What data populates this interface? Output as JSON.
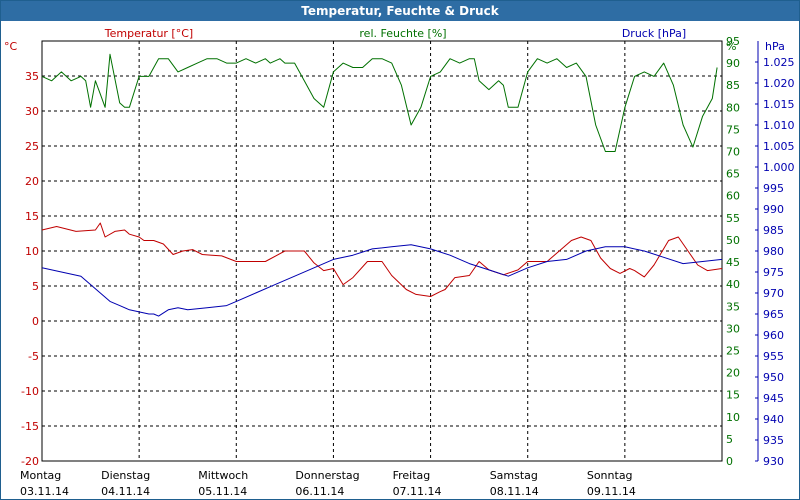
{
  "window": {
    "title": "Temperatur, Feuchte & Druck"
  },
  "colors": {
    "temperature": "#c00000",
    "humidity": "#007000",
    "pressure": "#0000b0",
    "titlebar": "#2e6da4"
  },
  "chart_data": {
    "type": "line",
    "title": "Temperatur, Feuchte & Druck",
    "legend": {
      "temperature": "Temperatur [°C]",
      "humidity": "rel. Feuchte [%]",
      "pressure": "Druck [hPa]"
    },
    "axes": {
      "temperature": {
        "unit": "°C",
        "range": [
          -20,
          40
        ],
        "ticks": [
          -20,
          -15,
          -10,
          -5,
          0,
          5,
          10,
          15,
          20,
          25,
          30,
          35
        ]
      },
      "humidity": {
        "unit": "%",
        "range": [
          0,
          95
        ],
        "ticks": [
          0,
          5,
          10,
          15,
          20,
          25,
          30,
          35,
          40,
          45,
          50,
          55,
          60,
          65,
          70,
          75,
          80,
          85,
          90,
          95
        ]
      },
      "pressure": {
        "unit": "hPa",
        "range": [
          930,
          1030
        ],
        "ticks": [
          "930",
          "935",
          "940",
          "945",
          "950",
          "955",
          "960",
          "965",
          "970",
          "975",
          "980",
          "985",
          "990",
          "995",
          "1.000",
          "1.005",
          "1.010",
          "1.015",
          "1.020",
          "1.025"
        ]
      }
    },
    "x_range": [
      0,
      7
    ],
    "days": [
      {
        "name": "Montag",
        "date": "03.11.14"
      },
      {
        "name": "Dienstag",
        "date": "04.11.14"
      },
      {
        "name": "Mittwoch",
        "date": "05.11.14"
      },
      {
        "name": "Donnerstag",
        "date": "06.11.14"
      },
      {
        "name": "Freitag",
        "date": "07.11.14"
      },
      {
        "name": "Samstag",
        "date": "08.11.14"
      },
      {
        "name": "Sonntag",
        "date": "09.11.14"
      }
    ],
    "grid": true,
    "series": [
      {
        "name": "Temperatur [°C]",
        "axis": "temperature",
        "x": [
          0,
          0.15,
          0.35,
          0.55,
          0.6,
          0.65,
          0.75,
          0.85,
          0.9,
          1.0,
          1.05,
          1.15,
          1.25,
          1.35,
          1.45,
          1.55,
          1.65,
          1.75,
          1.85,
          2.0,
          2.15,
          2.3,
          2.5,
          2.7,
          2.8,
          2.9,
          3.0,
          3.1,
          3.2,
          3.35,
          3.5,
          3.6,
          3.75,
          3.85,
          4.0,
          4.1,
          4.15,
          4.25,
          4.4,
          4.5,
          4.6,
          4.75,
          4.9,
          5.0,
          5.2,
          5.35,
          5.45,
          5.55,
          5.65,
          5.75,
          5.85,
          5.95,
          6.05,
          6.1,
          6.2,
          6.3,
          6.45,
          6.55,
          6.65,
          6.75,
          6.85,
          7.0
        ],
        "values": [
          13,
          13.5,
          12.8,
          13,
          14,
          12,
          12.8,
          13,
          12.4,
          12,
          11.5,
          11.5,
          11,
          9.5,
          10,
          10.2,
          9.5,
          9.4,
          9.3,
          8.5,
          8.5,
          8.5,
          10,
          10,
          8.3,
          7.2,
          7.5,
          5.2,
          6.2,
          8.5,
          8.5,
          6.5,
          4.5,
          3.8,
          3.5,
          4.2,
          4.5,
          6.2,
          6.5,
          8.5,
          7.3,
          6.6,
          7.3,
          8.5,
          8.5,
          10.3,
          11.5,
          12,
          11.5,
          9,
          7.5,
          6.8,
          7.5,
          7.2,
          6.3,
          8,
          11.5,
          12,
          10,
          8,
          7.2,
          7.5
        ]
      },
      {
        "name": "rel. Feuchte [%]",
        "axis": "humidity",
        "x": [
          0,
          0.1,
          0.2,
          0.3,
          0.4,
          0.45,
          0.5,
          0.55,
          0.6,
          0.65,
          0.7,
          0.8,
          0.85,
          0.9,
          1.0,
          1.1,
          1.2,
          1.3,
          1.4,
          1.5,
          1.6,
          1.7,
          1.8,
          1.9,
          2.0,
          2.1,
          2.2,
          2.3,
          2.35,
          2.45,
          2.5,
          2.6,
          2.7,
          2.8,
          2.9,
          3.0,
          3.1,
          3.2,
          3.3,
          3.4,
          3.5,
          3.6,
          3.7,
          3.8,
          3.9,
          4.0,
          4.1,
          4.2,
          4.3,
          4.4,
          4.45,
          4.5,
          4.6,
          4.7,
          4.75,
          4.8,
          4.9,
          5.0,
          5.1,
          5.2,
          5.3,
          5.4,
          5.5,
          5.6,
          5.7,
          5.8,
          5.9,
          6.0,
          6.1,
          6.2,
          6.3,
          6.4,
          6.5,
          6.6,
          6.7,
          6.8,
          6.9,
          6.95
        ],
        "values": [
          87,
          86,
          88,
          86,
          87,
          86,
          80,
          86,
          83,
          80,
          92,
          81,
          80,
          80,
          87,
          87,
          91,
          91,
          88,
          89,
          90,
          91,
          91,
          90,
          90,
          91,
          90,
          91,
          90,
          91,
          90,
          90,
          86,
          82,
          80,
          88,
          90,
          89,
          89,
          91,
          91,
          90,
          85,
          76,
          80,
          87,
          88,
          91,
          90,
          91,
          91,
          86,
          84,
          86,
          85,
          80,
          80,
          88,
          91,
          90,
          91,
          89,
          90,
          87,
          76,
          70,
          70,
          80,
          87,
          88,
          87,
          90,
          85,
          76,
          71,
          78,
          82,
          89
        ]
      },
      {
        "name": "Druck [hPa]",
        "axis": "pressure",
        "x": [
          0,
          0.2,
          0.4,
          0.5,
          0.6,
          0.7,
          0.8,
          0.9,
          1.0,
          1.1,
          1.15,
          1.2,
          1.3,
          1.4,
          1.5,
          1.7,
          1.9,
          2.0,
          2.2,
          2.4,
          2.6,
          2.8,
          3.0,
          3.2,
          3.4,
          3.6,
          3.8,
          4.0,
          4.2,
          4.4,
          4.6,
          4.8,
          5.0,
          5.2,
          5.4,
          5.6,
          5.8,
          6.0,
          6.2,
          6.4,
          6.6,
          6.8,
          7.0
        ],
        "values": [
          976,
          975,
          974,
          972,
          970,
          968,
          967,
          966,
          965.5,
          965,
          965,
          964.5,
          966,
          966.5,
          966,
          966.5,
          967,
          968,
          970,
          972,
          974,
          976,
          978,
          979,
          980.5,
          981,
          981.5,
          980.5,
          979,
          977,
          975.5,
          974,
          976,
          977.5,
          978,
          980,
          981,
          981,
          980,
          978.5,
          977,
          977.5,
          978
        ]
      }
    ]
  }
}
